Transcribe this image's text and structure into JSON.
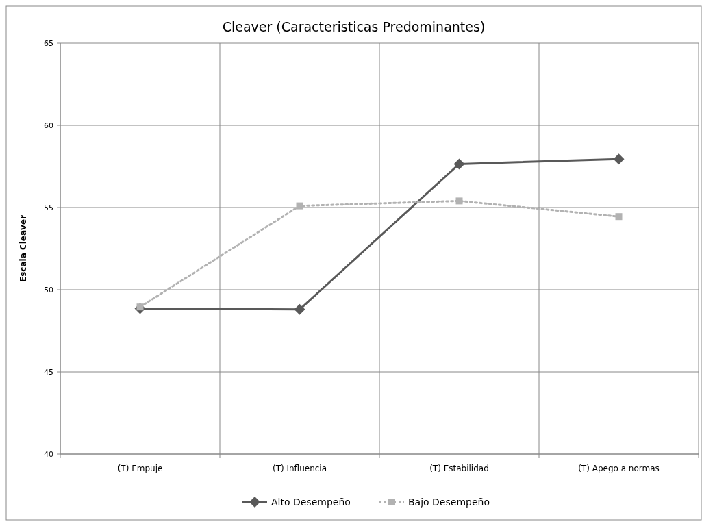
{
  "chart_data": {
    "type": "line",
    "title": "Cleaver (Caracteristicas Predominantes)",
    "ylabel": "Escala Cleaver",
    "categories": [
      "(T) Empuje",
      "(T) Influencia",
      "(T) Estabilidad",
      "(T) Apego a normas"
    ],
    "series": [
      {
        "name": "Alto Desempeño",
        "color": "#595959",
        "values": [
          48.85,
          48.8,
          57.65,
          57.95
        ],
        "marker": "diamond",
        "line_style": "solid"
      },
      {
        "name": "Bajo Desempeño",
        "color": "#b2b2b2",
        "values": [
          48.95,
          55.1,
          55.4,
          54.45
        ],
        "marker": "square",
        "line_style": "dotted"
      }
    ],
    "ylim": [
      40,
      65
    ],
    "yticks": [
      40,
      45,
      50,
      55,
      60,
      65
    ],
    "grid": true,
    "legend": "bottom"
  }
}
